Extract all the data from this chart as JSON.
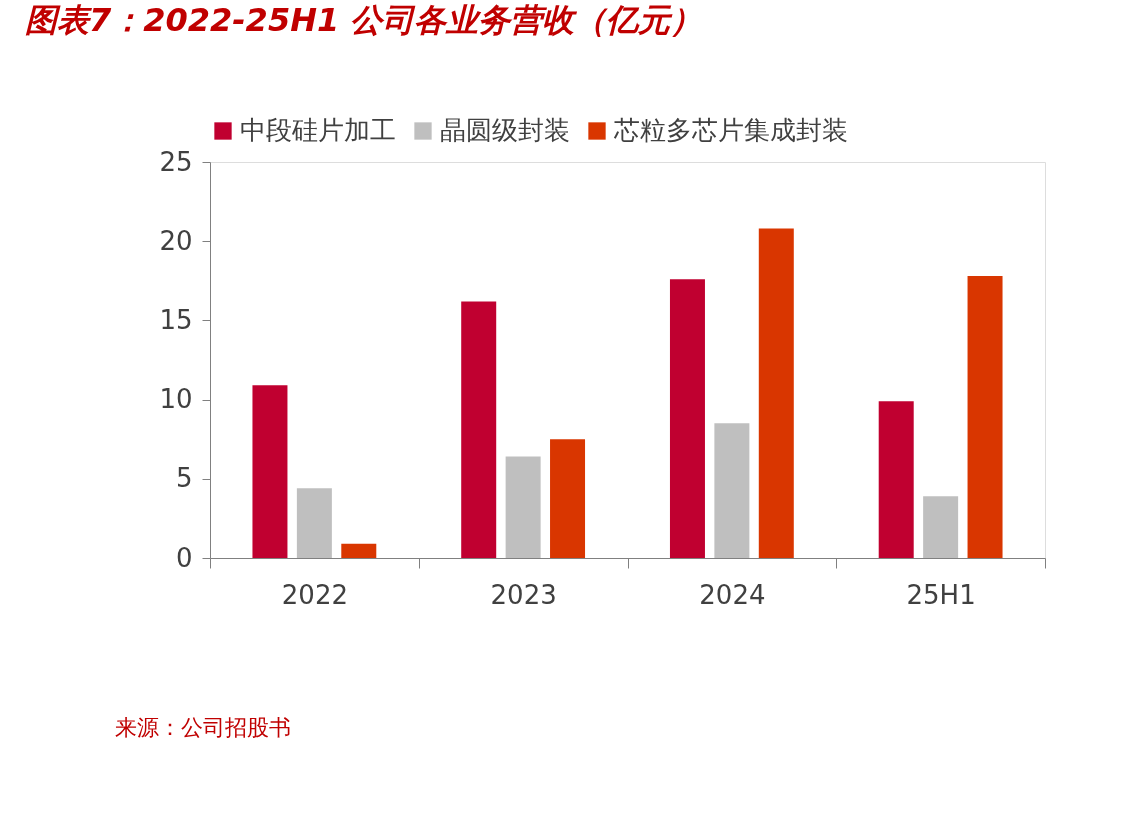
{
  "chart_data": {
    "type": "bar",
    "title": "图表7：2022-25H1 公司各业务营收（亿元）",
    "categories": [
      "2022",
      "2023",
      "2024",
      "25H1"
    ],
    "series": [
      {
        "name": "中段硅片加工",
        "color": "#c00030",
        "values": [
          10.9,
          16.2,
          17.6,
          9.9
        ]
      },
      {
        "name": "晶圆级封装",
        "color": "#bfbfbf",
        "values": [
          4.4,
          6.4,
          8.5,
          3.9
        ]
      },
      {
        "name": "芯粒多芯片集成封装",
        "color": "#d93600",
        "values": [
          0.9,
          7.5,
          20.8,
          17.8
        ]
      }
    ],
    "ylim": [
      0,
      25
    ],
    "yticks": [
      0,
      5,
      10,
      15,
      20,
      25
    ],
    "grid": false,
    "legend": "top",
    "annotations": [
      "来源：公司招股书"
    ]
  }
}
